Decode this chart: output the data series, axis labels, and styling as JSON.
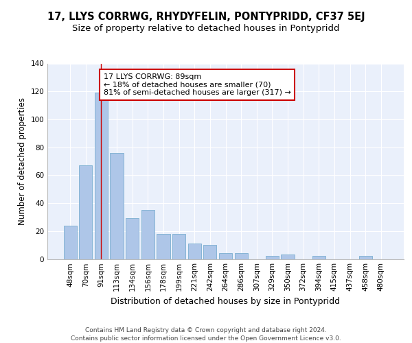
{
  "title": "17, LLYS CORRWG, RHYDYFELIN, PONTYPRIDD, CF37 5EJ",
  "subtitle": "Size of property relative to detached houses in Pontypridd",
  "xlabel": "Distribution of detached houses by size in Pontypridd",
  "ylabel": "Number of detached properties",
  "categories": [
    "48sqm",
    "70sqm",
    "91sqm",
    "113sqm",
    "134sqm",
    "156sqm",
    "178sqm",
    "199sqm",
    "221sqm",
    "242sqm",
    "264sqm",
    "286sqm",
    "307sqm",
    "329sqm",
    "350sqm",
    "372sqm",
    "394sqm",
    "415sqm",
    "437sqm",
    "458sqm",
    "480sqm"
  ],
  "values": [
    24,
    67,
    119,
    76,
    29,
    35,
    18,
    18,
    11,
    10,
    4,
    4,
    0,
    2,
    3,
    0,
    2,
    0,
    0,
    2,
    0
  ],
  "bar_color": "#aec6e8",
  "bar_edge_color": "#7aaed0",
  "highlight_index": 2,
  "highlight_color": "#aec6e8",
  "vline_x": 2,
  "vline_color": "#cc0000",
  "annotation_text": "17 LLYS CORRWG: 89sqm\n← 18% of detached houses are smaller (70)\n81% of semi-detached houses are larger (317) →",
  "annotation_box_color": "#ffffff",
  "annotation_box_edge": "#cc0000",
  "ylim": [
    0,
    140
  ],
  "yticks": [
    0,
    20,
    40,
    60,
    80,
    100,
    120,
    140
  ],
  "background_color": "#eaf0fb",
  "grid_color": "#ffffff",
  "footer": "Contains HM Land Registry data © Crown copyright and database right 2024.\nContains public sector information licensed under the Open Government Licence v3.0.",
  "title_fontsize": 10.5,
  "subtitle_fontsize": 9.5,
  "xlabel_fontsize": 9,
  "ylabel_fontsize": 8.5,
  "tick_fontsize": 7.5,
  "annotation_fontsize": 8,
  "footer_fontsize": 6.5
}
